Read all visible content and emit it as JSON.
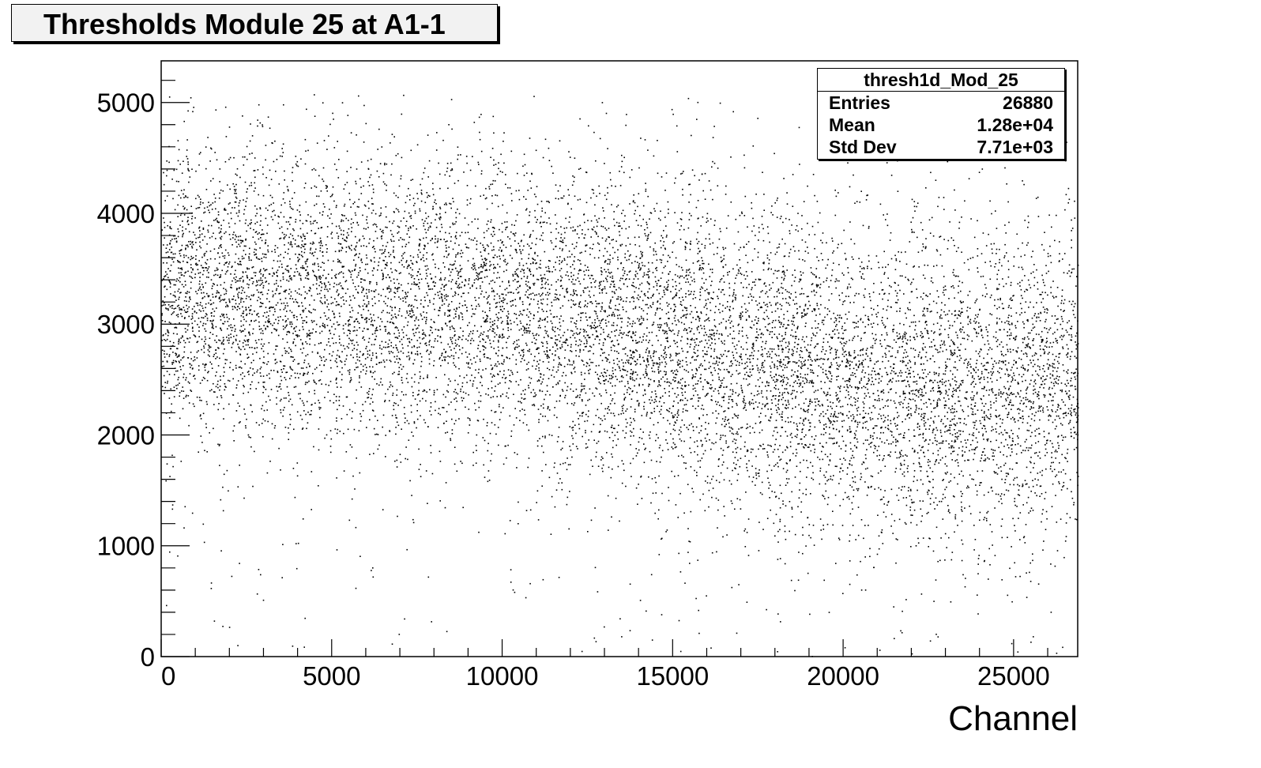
{
  "chart_data": {
    "type": "scatter",
    "title": "Thresholds Module 25 at A1-1",
    "xlabel": "Channel",
    "ylabel": "",
    "xlim": [
      0,
      26880
    ],
    "ylim": [
      0,
      5376
    ],
    "x_ticks": [
      0,
      5000,
      10000,
      15000,
      20000,
      25000
    ],
    "y_ticks": [
      0,
      1000,
      2000,
      3000,
      4000,
      5000
    ],
    "marker_color": "#000000",
    "trend": {
      "x": [
        0,
        5000,
        10000,
        15000,
        20000,
        25000,
        26880
      ],
      "y_center": [
        3300,
        3250,
        3150,
        2900,
        2500,
        2450,
        2500
      ],
      "y_spread": [
        650,
        650,
        650,
        700,
        700,
        700,
        700
      ]
    },
    "stats_box": {
      "name": "thresh1d_Mod_25",
      "entries_label": "Entries",
      "entries": "26880",
      "mean_label": "Mean",
      "mean": "1.28e+04",
      "std_label": "Std Dev",
      "std": "7.71e+03"
    }
  }
}
